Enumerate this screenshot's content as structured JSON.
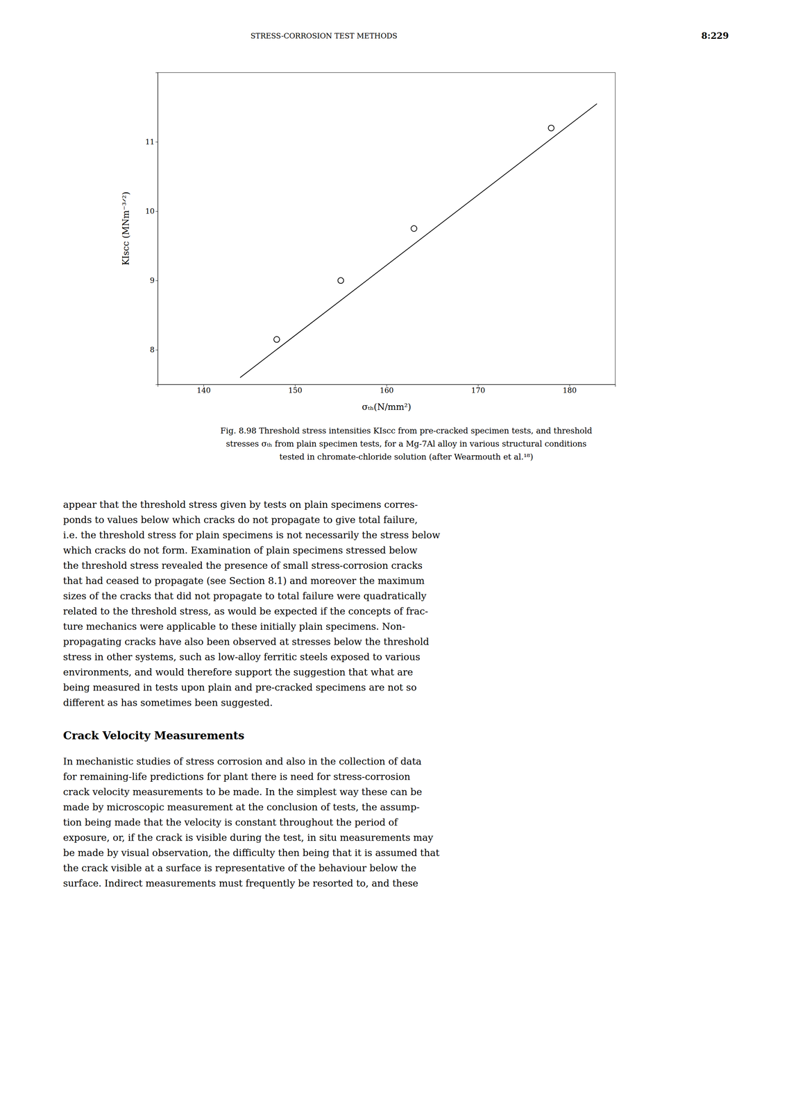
{
  "page_header_left": "STRESS-CORROSION TEST METHODS",
  "page_header_right": "8:229",
  "chart_data": {
    "type": "scatter",
    "xlabel": "σₜₕ(N/mm²)",
    "ylabel": "KIscc (MNm⁻³ᐟ²)",
    "xlim": [
      135,
      185
    ],
    "ylim": [
      7.5,
      12.0
    ],
    "xticks": [
      140,
      150,
      160,
      170,
      180
    ],
    "yticks": [
      8,
      9,
      10,
      11
    ],
    "grid": false,
    "series": [
      {
        "type": "scatter",
        "marker": "circle",
        "color": "#000000",
        "x": [
          148,
          155,
          163,
          178
        ],
        "values": [
          8.15,
          9.0,
          9.75,
          11.2
        ]
      },
      {
        "type": "line",
        "line_style": "solid",
        "color": "#000000",
        "x": [
          144,
          183
        ],
        "values": [
          7.6,
          11.55
        ]
      }
    ]
  },
  "fig_caption": [
    "Fig. 8.98  Threshold stress intensities KIscc from pre-cracked specimen tests, and threshold",
    "stresses σₜₕ from plain specimen tests, for a Mg-7Al alloy in various structural conditions",
    "tested in chromate-chloride solution (after Wearmouth et al.¹⁸)"
  ],
  "body_text_1": [
    "appear that the threshold stress given by tests on plain specimens corres-",
    "ponds to values below which cracks do not propagate to give total failure,",
    "i.e. the threshold stress for plain specimens is not necessarily the stress below",
    "which cracks do not form. Examination of plain specimens stressed below",
    "the threshold stress revealed the presence of small stress-corrosion cracks",
    "that had ceased to propagate (see Section 8.1) and moreover the maximum",
    "sizes of the cracks that did not propagate to total failure were quadratically",
    "related to the threshold stress, as would be expected if the concepts of frac-",
    "ture mechanics were applicable to these initially plain specimens. Non-",
    "propagating cracks have also been observed at stresses below the threshold",
    "stress in other systems, such as low-alloy ferritic steels exposed to various",
    "environments, and would therefore support the suggestion that what are",
    "being measured in tests upon plain and pre-cracked specimens are not so",
    "different as has sometimes been suggested."
  ],
  "section_heading": "Crack Velocity Measurements",
  "body_text_2": [
    "In mechanistic studies of stress corrosion and also in the collection of data",
    "for remaining-life predictions for plant there is need for stress-corrosion",
    "crack velocity measurements to be made. In the simplest way these can be",
    "made by microscopic measurement at the conclusion of tests, the assump-",
    "tion being made that the velocity is constant throughout the period of",
    "exposure, or, if the crack is visible during the test, in situ measurements may",
    "be made by visual observation, the difficulty then being that it is assumed that",
    "the crack visible at a surface is representative of the behaviour below the",
    "surface. Indirect measurements must frequently be resorted to, and these"
  ]
}
